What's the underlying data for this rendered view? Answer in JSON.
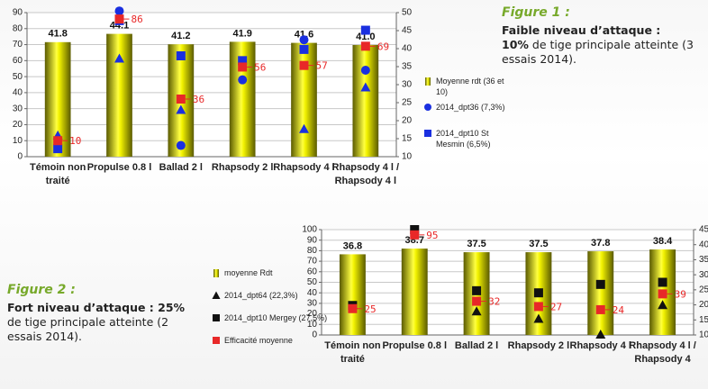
{
  "chart_data": [
    {
      "type": "bar",
      "categories": [
        "Témoin non traité",
        "Propulse 0.8 l",
        "Ballad 2 l",
        "Rhapsody 2 l",
        "Rhapsody 4 l",
        "Rhapsody 4 l / Rhapsody 4 l"
      ],
      "ylim": [
        0,
        90
      ],
      "yticks": [
        0,
        10,
        20,
        30,
        40,
        50,
        60,
        70,
        80,
        90
      ],
      "y2lim": [
        10,
        50
      ],
      "y2ticks": [
        10,
        15,
        20,
        25,
        30,
        35,
        40,
        45,
        50
      ],
      "grid": true,
      "series": [
        {
          "name": "Moyenne rdt (36 et 10)",
          "marker": "bar",
          "axis": "y2",
          "color": "#e6e600",
          "values": [
            41.8,
            44.1,
            41.2,
            41.9,
            41.6,
            41.0
          ],
          "value_labels": [
            "41.8",
            "44.1",
            "41.2",
            "41.9",
            "41.6",
            "41.0"
          ]
        },
        {
          "name": "2014_dpt36 (7,3%)",
          "marker": "circle",
          "color": "#1a2fe0",
          "values": [
            null,
            91,
            7,
            48,
            73,
            54
          ]
        },
        {
          "name": "2014_dpt10 St Mesmin (6,5%)",
          "marker": "square",
          "color": "#1a2fe0",
          "values": [
            5,
            85,
            63,
            60,
            67,
            79
          ]
        },
        {
          "marker": "triangle",
          "color": "#1a2fe0",
          "values": [
            13,
            61,
            29,
            null,
            17,
            43
          ]
        },
        {
          "marker": "square",
          "color": "#e82828",
          "values": [
            10,
            86,
            36,
            56,
            57,
            69
          ],
          "data_labels": true
        }
      ]
    },
    {
      "type": "bar",
      "categories": [
        "Témoin non traité",
        "Propulse 0.8 l",
        "Ballad 2 l",
        "Rhapsody 2 l",
        "Rhapsody 4 l",
        "Rhapsody 4 l / Rhapsody 4"
      ],
      "ylim": [
        0,
        100
      ],
      "yticks": [
        0,
        10,
        20,
        30,
        40,
        50,
        60,
        70,
        80,
        90,
        100
      ],
      "y2lim": [
        10,
        45
      ],
      "y2ticks": [
        10,
        15,
        20,
        25,
        30,
        35,
        40,
        45
      ],
      "grid": true,
      "series": [
        {
          "name": "moyenne Rdt",
          "marker": "bar",
          "axis": "y2",
          "color": "#e6e600",
          "values": [
            36.8,
            38.7,
            37.5,
            37.5,
            37.8,
            38.4
          ],
          "value_labels": [
            "36.8",
            "38.7",
            "37.5",
            "37.5",
            "37.8",
            "38.4"
          ]
        },
        {
          "name": "2014_dpt64 (22,3%)",
          "marker": "triangle",
          "color": "#111111",
          "values": [
            null,
            null,
            22,
            15,
            0,
            28
          ]
        },
        {
          "name": "2014_dpt10 Mergey (27,5%)",
          "marker": "square",
          "color": "#111111",
          "values": [
            28,
            100,
            42,
            40,
            48,
            50
          ]
        },
        {
          "name": "Efficacité moyenne",
          "marker": "square",
          "color": "#e82828",
          "values": [
            25,
            95,
            32,
            27,
            24,
            39
          ],
          "data_labels": true
        }
      ]
    }
  ],
  "captions": [
    {
      "label": "Figure  1 :",
      "heading": "Faible niveau d’attaque :",
      "bold": "10%",
      "text": "de tige principale atteinte (3 essais 2014)."
    },
    {
      "label": "Figure  2 :",
      "heading": "Fort niveau d’attaque : 25%",
      "text": "de tige principale atteinte (2 essais 2014)."
    }
  ]
}
